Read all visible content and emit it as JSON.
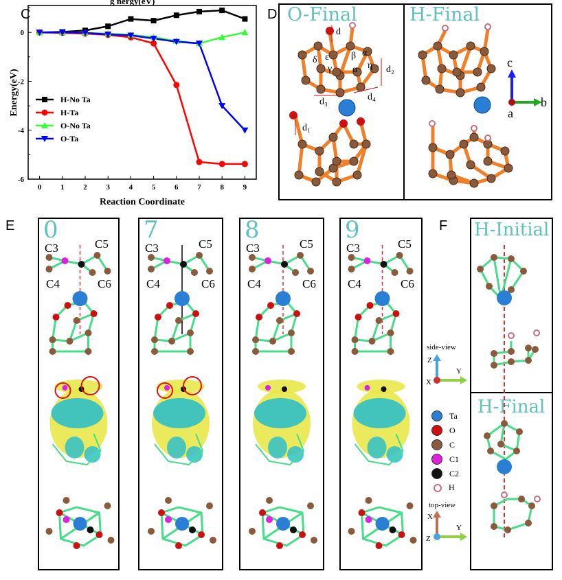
{
  "panels": {
    "C": "C",
    "D": "D",
    "E": "E",
    "F": "F"
  },
  "panelC": {
    "title_fragment": "g   nergy(eV)",
    "xlabel": "Reaction Coordinate",
    "ylabel": "Energy(eV)",
    "x_ticks": [
      "0",
      "1",
      "2",
      "3",
      "4",
      "5",
      "6",
      "7",
      "8",
      "9"
    ],
    "y_ticks": [
      "0",
      "-2",
      "-4",
      "-6"
    ],
    "legend": [
      "H-No Ta",
      "H-Ta",
      "O-No Ta",
      "O-Ta"
    ]
  },
  "chart_data": {
    "type": "line",
    "x": [
      0,
      1,
      2,
      3,
      4,
      5,
      6,
      7,
      8,
      9
    ],
    "xlabel": "Reaction Coordinate",
    "ylabel": "Energy(eV)",
    "xlim": [
      -0.5,
      9.5
    ],
    "ylim": [
      -6,
      1.1
    ],
    "legend_position": "center-left",
    "series": [
      {
        "name": "H-No Ta",
        "color": "#000000",
        "marker": "square",
        "values": [
          0.0,
          0.02,
          0.08,
          0.25,
          0.55,
          0.48,
          0.7,
          0.85,
          0.9,
          0.55
        ]
      },
      {
        "name": "H-Ta",
        "color": "#ff0000",
        "marker": "circle",
        "values": [
          0.0,
          -0.02,
          -0.05,
          -0.1,
          -0.2,
          -0.45,
          -2.15,
          -5.3,
          -5.38,
          -5.38
        ]
      },
      {
        "name": "O-No Ta",
        "color": "#33ff33",
        "marker": "triangle-up",
        "values": [
          0.0,
          0.0,
          -0.02,
          -0.05,
          -0.1,
          -0.2,
          -0.35,
          -0.45,
          -0.2,
          0.0
        ]
      },
      {
        "name": "O-Ta",
        "color": "#0000ff",
        "marker": "triangle-down",
        "values": [
          0.0,
          0.0,
          -0.02,
          -0.08,
          -0.12,
          -0.25,
          -0.38,
          -0.45,
          -3.0,
          -4.0
        ]
      }
    ]
  },
  "panelD": {
    "o_final": "O-Final",
    "h_final": "H-Final",
    "labels": [
      "d",
      "δ",
      "ε",
      "β",
      "α",
      "γ",
      "α",
      "η",
      "d₂",
      "d₃",
      "d₄",
      "d₁"
    ],
    "axes": {
      "c": "c",
      "a": "a",
      "b": "b"
    }
  },
  "panelE": {
    "frames": [
      {
        "num": "0",
        "c3": "C3",
        "c5": "C5",
        "c4": "C4",
        "c6": "C6"
      },
      {
        "num": "7",
        "c3": "C3",
        "c5": "C5",
        "c4": "C4",
        "c6": "C6"
      },
      {
        "num": "8",
        "c3": "C3",
        "c5": "C5",
        "c4": "C4",
        "c6": "C6"
      },
      {
        "num": "9",
        "c3": "C3",
        "c5": "C5",
        "c4": "C4",
        "c6": "C6"
      }
    ]
  },
  "panelF": {
    "initial": "H-Initial",
    "final": "H-Final"
  },
  "views": {
    "side": {
      "title": "side-view",
      "a1": "Z",
      "a2": "Y",
      "a3": "X"
    },
    "top": {
      "title": "top-view",
      "a1": "X",
      "a2": "Y",
      "a3": "Z"
    }
  },
  "atom_legend": [
    {
      "label": "Ta",
      "color": "#2a7fd4"
    },
    {
      "label": "O",
      "color": "#d01010"
    },
    {
      "label": "C",
      "color": "#8a5a3c"
    },
    {
      "label": "C1",
      "color": "#e020e0"
    },
    {
      "label": "C2",
      "color": "#111111"
    },
    {
      "label": "H",
      "color": "#ffffff"
    }
  ]
}
